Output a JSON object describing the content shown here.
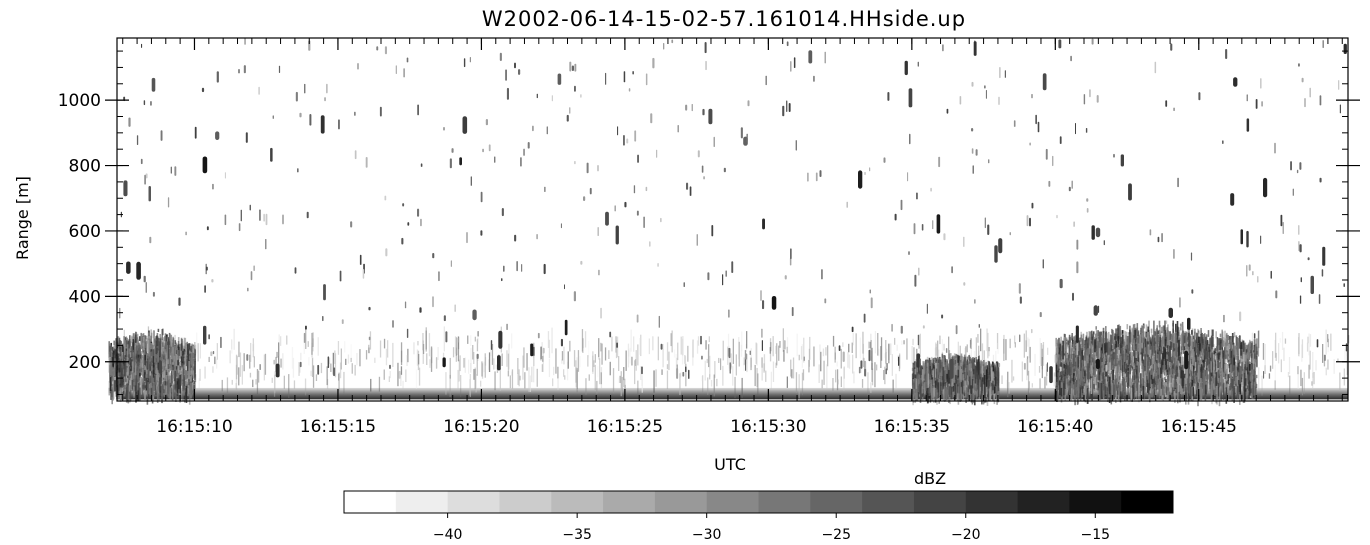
{
  "chart_data": {
    "type": "heatmap",
    "title": "W2002-06-14-15-02-57.161014.HHside.up",
    "xlabel": "UTC",
    "ylabel": "Range [m]",
    "x_range_seconds": [
      "16:15:07.3",
      "16:15:50.2"
    ],
    "x_ticks": [
      "16:15:10",
      "16:15:15",
      "16:15:20",
      "16:15:25",
      "16:15:30",
      "16:15:35",
      "16:15:40",
      "16:15:45"
    ],
    "y_range": [
      80,
      1190
    ],
    "y_ticks": [
      200,
      400,
      600,
      800,
      1000
    ],
    "colorbar": {
      "title": "dBZ",
      "range": [
        -44,
        -12
      ],
      "ticks": [
        -40,
        -35,
        -30,
        -25,
        -20,
        -15
      ],
      "colormap": "grayscale",
      "color_low": "#ffffff",
      "color_high": "#000000",
      "levels": 16
    },
    "features": {
      "ground_clutter_band_m": [
        85,
        120
      ],
      "dense_echo_regions": [
        {
          "x_start": "16:15:07",
          "x_end": "16:15:10",
          "range_top_m": 310
        },
        {
          "x_start": "16:15:35",
          "x_end": "16:15:38",
          "range_top_m": 230
        },
        {
          "x_start": "16:15:40",
          "x_end": "16:15:47",
          "range_top_m": 330
        }
      ],
      "sparse_echo_max_range_m": 1190
    }
  }
}
